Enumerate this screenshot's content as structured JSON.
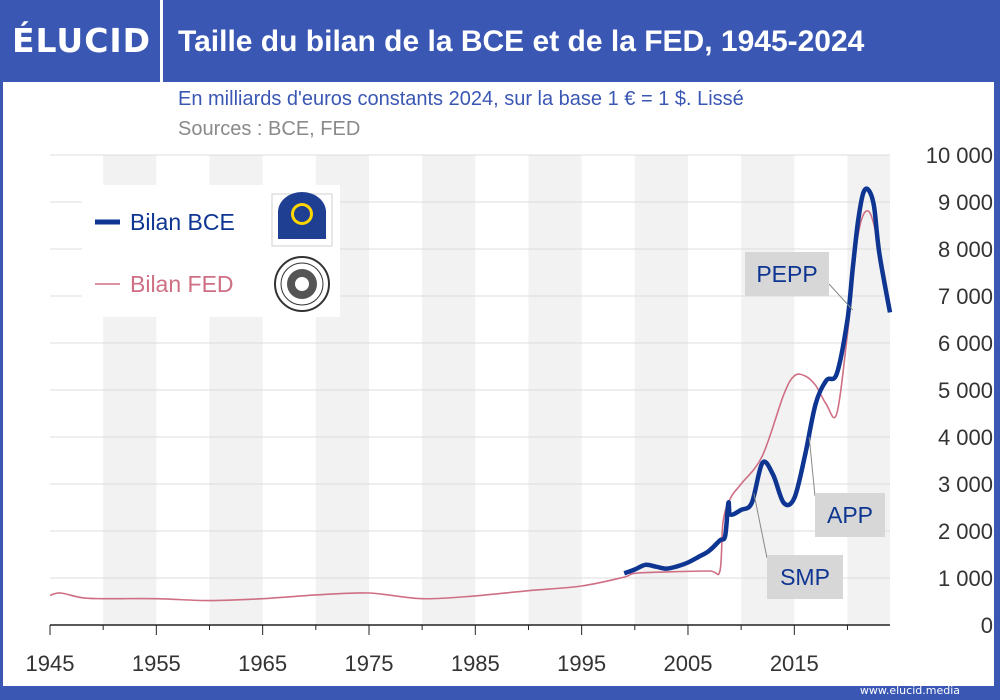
{
  "header": {
    "logo": "ÉLUCID",
    "title": "Taille du bilan de la BCE et de la FED, 1945-2024"
  },
  "subtitle": "En milliards d'euros constants 2024, sur la base 1 € = 1 $. Lissé",
  "sources": "Sources : BCE, FED",
  "footer": "www.elucid.media",
  "colors": {
    "brand": "#3a57b4",
    "bce": "#0d3591",
    "fed": "#cf6f84",
    "band": "#f2f2f2"
  },
  "chart_data": {
    "type": "line",
    "title": "Taille du bilan de la BCE et de la FED, 1945-2024",
    "xlabel": "",
    "ylabel": "",
    "xlim": [
      1945,
      2024
    ],
    "ylim": [
      0,
      10000
    ],
    "x_ticks": [
      1945,
      1955,
      1965,
      1975,
      1985,
      1995,
      2005,
      2015
    ],
    "x_tick_labels": [
      "1945",
      "1955",
      "1965",
      "1975",
      "1985",
      "1995",
      "2005",
      "2015"
    ],
    "y_ticks": [
      0,
      1000,
      2000,
      3000,
      4000,
      5000,
      6000,
      7000,
      8000,
      9000,
      10000
    ],
    "y_tick_labels": [
      "0",
      "1 000",
      "2 000",
      "3 000",
      "4 000",
      "5 000",
      "6 000",
      "7 000",
      "8 000",
      "9 000",
      "10 000"
    ],
    "legend_position": "top-left",
    "series": [
      {
        "name": "Bilan BCE",
        "x": [
          1999,
          2000,
          2001,
          2002,
          2003,
          2004,
          2005,
          2006,
          2007,
          2008,
          2008.5,
          2008.8,
          2009,
          2010,
          2011,
          2012,
          2013,
          2014,
          2015,
          2016,
          2017,
          2018,
          2019,
          2020,
          2020.5,
          2021,
          2021.5,
          2022,
          2022.5,
          2023,
          2024
        ],
        "y": [
          1100,
          1180,
          1280,
          1240,
          1200,
          1250,
          1330,
          1450,
          1580,
          1800,
          1900,
          2600,
          2350,
          2450,
          2600,
          3450,
          3200,
          2600,
          2700,
          3600,
          4700,
          5200,
          5350,
          6500,
          7600,
          8600,
          9200,
          9250,
          8900,
          7900,
          6650
        ]
      },
      {
        "name": "Bilan FED",
        "x": [
          1945,
          1946,
          1948,
          1950,
          1955,
          1960,
          1965,
          1970,
          1975,
          1980,
          1985,
          1990,
          1995,
          1999,
          2000,
          2003,
          2007,
          2008,
          2008.3,
          2009,
          2010,
          2012,
          2014,
          2015,
          2016,
          2017,
          2018,
          2019,
          2020,
          2021,
          2022,
          2023,
          2024
        ],
        "y": [
          630,
          680,
          580,
          560,
          560,
          520,
          560,
          640,
          680,
          560,
          620,
          730,
          830,
          1020,
          1100,
          1130,
          1150,
          1150,
          2200,
          2700,
          3000,
          3600,
          4900,
          5300,
          5300,
          5100,
          4700,
          4500,
          6200,
          8300,
          8800,
          8000,
          6800
        ]
      }
    ],
    "annotations": [
      {
        "label": "PEPP",
        "x": 2020,
        "y": 7400
      },
      {
        "label": "APP",
        "x": 2016,
        "y": 3800
      },
      {
        "label": "SMP",
        "x": 2010.5,
        "y": 2300
      }
    ]
  }
}
